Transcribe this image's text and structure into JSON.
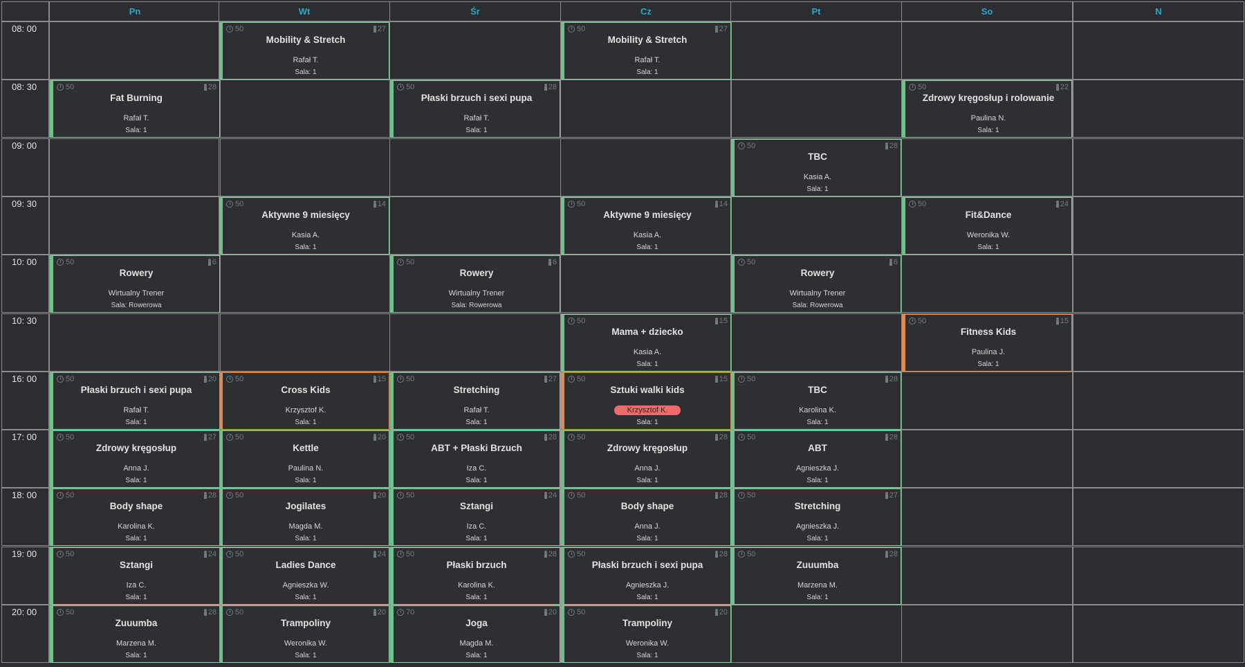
{
  "days": [
    "Pn",
    "Wt",
    "Śr",
    "Cz",
    "Pt",
    "So",
    "N"
  ],
  "times": [
    "08: 00",
    "08: 30",
    "09: 00",
    "09: 30",
    "10: 00",
    "10: 30",
    "16: 00",
    "17: 00",
    "18: 00",
    "19: 00",
    "20: 00"
  ],
  "classes": [
    {
      "day": 1,
      "slot": 0,
      "name": "Mobility & Stretch",
      "trainer": "Rafał T.",
      "room": "Sala: 1",
      "duration": "50",
      "capacity": "27",
      "accent": "green"
    },
    {
      "day": 3,
      "slot": 0,
      "name": "Mobility & Stretch",
      "trainer": "Rafał T.",
      "room": "Sala: 1",
      "duration": "50",
      "capacity": "27",
      "accent": "green"
    },
    {
      "day": 0,
      "slot": 1,
      "name": "Fat Burning",
      "trainer": "Rafał T.",
      "room": "Sala: 1",
      "duration": "50",
      "capacity": "28",
      "accent": "green"
    },
    {
      "day": 2,
      "slot": 1,
      "name": "Płaski brzuch i sexi pupa",
      "trainer": "Rafał T.",
      "room": "Sala: 1",
      "duration": "50",
      "capacity": "28",
      "accent": "green"
    },
    {
      "day": 5,
      "slot": 1,
      "name": "Zdrowy kręgosłup i rolowanie",
      "trainer": "Paulina N.",
      "room": "Sala: 1",
      "duration": "50",
      "capacity": "22",
      "accent": "green"
    },
    {
      "day": 4,
      "slot": 2,
      "name": "TBC",
      "trainer": "Kasia A.",
      "room": "Sala: 1",
      "duration": "50",
      "capacity": "28",
      "accent": "green"
    },
    {
      "day": 1,
      "slot": 3,
      "name": "Aktywne 9 miesięcy",
      "trainer": "Kasia A.",
      "room": "Sala: 1",
      "duration": "50",
      "capacity": "14",
      "accent": "green"
    },
    {
      "day": 3,
      "slot": 3,
      "name": "Aktywne 9 miesięcy",
      "trainer": "Kasia A.",
      "room": "Sala: 1",
      "duration": "50",
      "capacity": "14",
      "accent": "green"
    },
    {
      "day": 5,
      "slot": 3,
      "name": "Fit&Dance",
      "trainer": "Weronika W.",
      "room": "Sala: 1",
      "duration": "50",
      "capacity": "24",
      "accent": "green"
    },
    {
      "day": 0,
      "slot": 4,
      "name": "Rowery",
      "trainer": "Wirtualny Trener",
      "room": "Sala: Rowerowa",
      "duration": "50",
      "capacity": "6",
      "accent": "green"
    },
    {
      "day": 2,
      "slot": 4,
      "name": "Rowery",
      "trainer": "Wirtualny Trener",
      "room": "Sala: Rowerowa",
      "duration": "50",
      "capacity": "6",
      "accent": "green"
    },
    {
      "day": 4,
      "slot": 4,
      "name": "Rowery",
      "trainer": "Wirtualny Trener",
      "room": "Sala: Rowerowa",
      "duration": "50",
      "capacity": "6",
      "accent": "green"
    },
    {
      "day": 3,
      "slot": 5,
      "name": "Mama + dziecko",
      "trainer": "Kasia A.",
      "room": "Sala: 1",
      "duration": "50",
      "capacity": "15",
      "accent": "green"
    },
    {
      "day": 5,
      "slot": 5,
      "name": "Fitness Kids",
      "trainer": "Paulina J.",
      "room": "Sala: 1",
      "duration": "50",
      "capacity": "15",
      "accent": "orange"
    },
    {
      "day": 0,
      "slot": 6,
      "name": "Płaski brzuch i sexi pupa",
      "trainer": "Rafał T.",
      "room": "Sala: 1",
      "duration": "50",
      "capacity": "20",
      "accent": "green"
    },
    {
      "day": 1,
      "slot": 6,
      "name": "Cross Kids",
      "trainer": "Krzysztof K.",
      "room": "Sala: 1",
      "duration": "50",
      "capacity": "15",
      "accent": "orange"
    },
    {
      "day": 2,
      "slot": 6,
      "name": "Stretching",
      "trainer": "Rafał T.",
      "room": "Sala: 1",
      "duration": "50",
      "capacity": "27",
      "accent": "green"
    },
    {
      "day": 3,
      "slot": 6,
      "name": "Sztuki walki kids",
      "trainer": "Krzysztof K.",
      "room": "Sala: 1",
      "duration": "50",
      "capacity": "15",
      "accent": "orange",
      "trainer_badge": true
    },
    {
      "day": 4,
      "slot": 6,
      "name": "TBC",
      "trainer": "Karolina K.",
      "room": "Sala: 1",
      "duration": "50",
      "capacity": "28",
      "accent": "green"
    },
    {
      "day": 0,
      "slot": 7,
      "name": "Zdrowy kręgosłup",
      "trainer": "Anna J.",
      "room": "Sala: 1",
      "duration": "50",
      "capacity": "27",
      "accent": "green"
    },
    {
      "day": 1,
      "slot": 7,
      "name": "Kettle",
      "trainer": "Paulina N.",
      "room": "Sala: 1",
      "duration": "50",
      "capacity": "20",
      "accent": "green"
    },
    {
      "day": 2,
      "slot": 7,
      "name": "ABT + Płaski Brzuch",
      "trainer": "Iza C.",
      "room": "Sala: 1",
      "duration": "50",
      "capacity": "28",
      "accent": "green"
    },
    {
      "day": 3,
      "slot": 7,
      "name": "Zdrowy kręgosłup",
      "trainer": "Anna J.",
      "room": "Sala: 1",
      "duration": "50",
      "capacity": "28",
      "accent": "green"
    },
    {
      "day": 4,
      "slot": 7,
      "name": "ABT",
      "trainer": "Agnieszka J.",
      "room": "Sala: 1",
      "duration": "50",
      "capacity": "28",
      "accent": "green"
    },
    {
      "day": 0,
      "slot": 8,
      "name": "Body shape",
      "trainer": "Karolina K.",
      "room": "Sala: 1",
      "duration": "50",
      "capacity": "28",
      "accent": "green"
    },
    {
      "day": 1,
      "slot": 8,
      "name": "Jogilates",
      "trainer": "Magda M.",
      "room": "Sala: 1",
      "duration": "50",
      "capacity": "20",
      "accent": "green"
    },
    {
      "day": 2,
      "slot": 8,
      "name": "Sztangi",
      "trainer": "Iza C.",
      "room": "Sala: 1",
      "duration": "50",
      "capacity": "24",
      "accent": "green"
    },
    {
      "day": 3,
      "slot": 8,
      "name": "Body shape",
      "trainer": "Anna J.",
      "room": "Sala: 1",
      "duration": "50",
      "capacity": "28",
      "accent": "green"
    },
    {
      "day": 4,
      "slot": 8,
      "name": "Stretching",
      "trainer": "Agnieszka J.",
      "room": "Sala: 1",
      "duration": "50",
      "capacity": "27",
      "accent": "green"
    },
    {
      "day": 0,
      "slot": 9,
      "name": "Sztangi",
      "trainer": "Iza C.",
      "room": "Sala: 1",
      "duration": "50",
      "capacity": "24",
      "accent": "green"
    },
    {
      "day": 1,
      "slot": 9,
      "name": "Ladies Dance",
      "trainer": "Agnieszka W.",
      "room": "Sala: 1",
      "duration": "50",
      "capacity": "24",
      "accent": "green"
    },
    {
      "day": 2,
      "slot": 9,
      "name": "Płaski brzuch",
      "trainer": "Karolina K.",
      "room": "Sala: 1",
      "duration": "50",
      "capacity": "28",
      "accent": "green"
    },
    {
      "day": 3,
      "slot": 9,
      "name": "Płaski brzuch i sexi pupa",
      "trainer": "Agnieszka J.",
      "room": "Sala: 1",
      "duration": "50",
      "capacity": "28",
      "accent": "green"
    },
    {
      "day": 4,
      "slot": 9,
      "name": "Zuuumba",
      "trainer": "Marzena M.",
      "room": "Sala: 1",
      "duration": "50",
      "capacity": "28",
      "accent": "green"
    },
    {
      "day": 0,
      "slot": 10,
      "name": "Zuuumba",
      "trainer": "Marzena M.",
      "room": "Sala: 1",
      "duration": "50",
      "capacity": "28",
      "accent": "green"
    },
    {
      "day": 1,
      "slot": 10,
      "name": "Trampoliny",
      "trainer": "Weronika W.",
      "room": "Sala: 1",
      "duration": "50",
      "capacity": "20",
      "accent": "green"
    },
    {
      "day": 2,
      "slot": 10,
      "name": "Joga",
      "trainer": "Magda M.",
      "room": "Sala: 1",
      "duration": "70",
      "capacity": "20",
      "accent": "green"
    },
    {
      "day": 3,
      "slot": 10,
      "name": "Trampoliny",
      "trainer": "Weronika W.",
      "room": "Sala: 1",
      "duration": "50",
      "capacity": "20",
      "accent": "green"
    }
  ]
}
